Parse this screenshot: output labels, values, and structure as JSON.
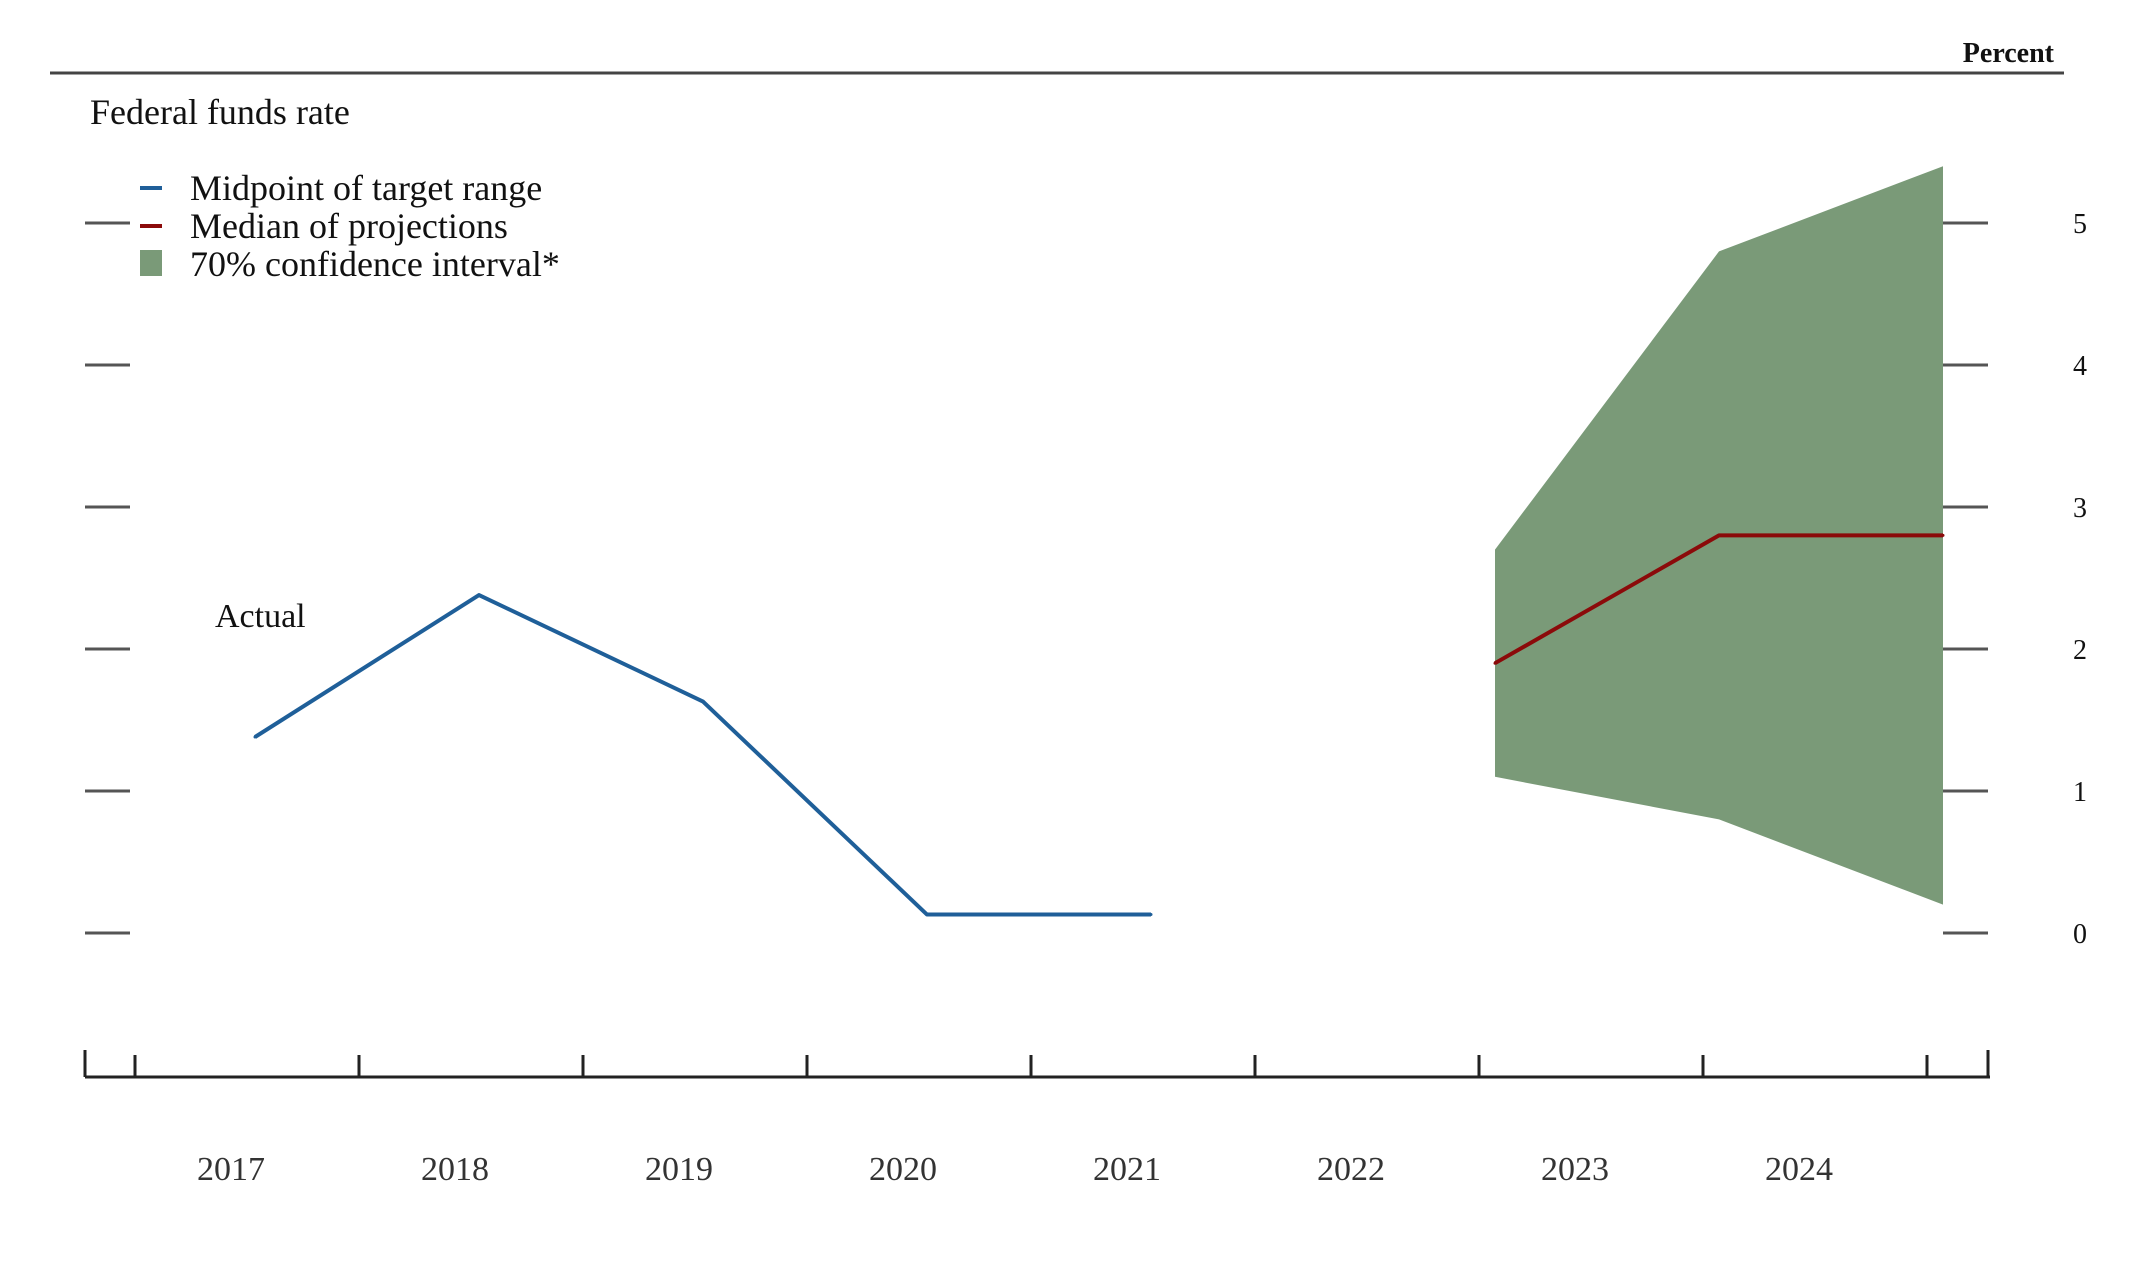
{
  "chart_data": {
    "type": "line",
    "title": "Federal funds rate",
    "ylabel": "Percent",
    "xlabel": "",
    "ylim": [
      0,
      5
    ],
    "yticks": [
      0,
      1,
      2,
      3,
      4,
      5
    ],
    "categories": [
      "2017",
      "2018",
      "2019",
      "2020",
      "2021",
      "2022",
      "2023",
      "2024"
    ],
    "legend_position": "top-left",
    "annotation": "Actual",
    "series": [
      {
        "name": "Midpoint of target range",
        "color": "#1f5f99",
        "x": [
          2017,
          2018,
          2019,
          2020,
          2021
        ],
        "values": [
          1.38,
          2.38,
          1.63,
          0.13,
          0.13
        ]
      },
      {
        "name": "Median of projections",
        "color": "#8b0a0a",
        "x": [
          2022,
          2023,
          2024
        ],
        "values": [
          1.9,
          2.8,
          2.8
        ]
      }
    ],
    "band": {
      "name": "70% confidence interval*",
      "color": "#7a9a78",
      "x": [
        2022,
        2023,
        2024
      ],
      "lower": [
        1.1,
        0.8,
        0.2
      ],
      "upper": [
        2.7,
        4.8,
        5.4
      ]
    }
  }
}
